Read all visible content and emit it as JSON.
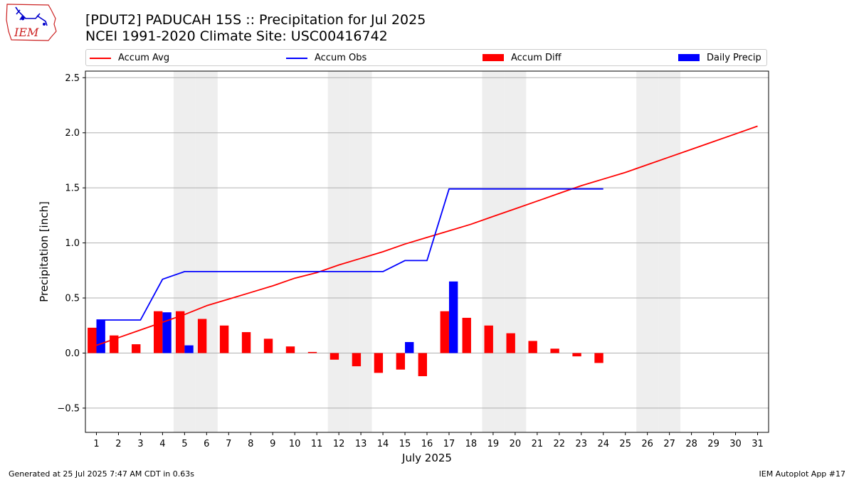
{
  "header": {
    "title_line1": "[PDUT2] PADUCAH 15S :: Precipitation for Jul 2025",
    "title_line2": "NCEI 1991-2020 Climate Site: USC00416742",
    "logo_text": "IEM"
  },
  "footer": {
    "generated": "Generated at 25 Jul 2025 7:47 AM CDT in 0.63s",
    "app": "IEM Autoplot App #17"
  },
  "legend": [
    {
      "label": "Accum Avg",
      "kind": "line",
      "color": "#ff0000"
    },
    {
      "label": "Accum Obs",
      "kind": "line",
      "color": "#0000ff"
    },
    {
      "label": "Accum Diff",
      "kind": "bar",
      "color": "#ff0000"
    },
    {
      "label": "Daily Precip",
      "kind": "bar",
      "color": "#0000ff"
    }
  ],
  "chart_data": {
    "type": "bar",
    "xlabel": "July 2025",
    "ylabel": "Precipitation [inch]",
    "ylim": [
      -0.72,
      2.56
    ],
    "yticks": [
      -0.5,
      0.0,
      0.5,
      1.0,
      1.5,
      2.0,
      2.5
    ],
    "ytick_labels": [
      "−0.5",
      "0.0",
      "0.5",
      "1.0",
      "1.5",
      "2.0",
      "2.5"
    ],
    "days": [
      1,
      2,
      3,
      4,
      5,
      6,
      7,
      8,
      9,
      10,
      11,
      12,
      13,
      14,
      15,
      16,
      17,
      18,
      19,
      20,
      21,
      22,
      23,
      24,
      25,
      26,
      27,
      28,
      29,
      30,
      31
    ],
    "weekend_days": [
      5,
      6,
      12,
      13,
      19,
      20,
      26,
      27
    ],
    "grid": "horizontal",
    "legend_position": "top",
    "series": [
      {
        "name": "Accum Avg",
        "kind": "line",
        "color": "#ff0000",
        "values": [
          0.07,
          0.14,
          0.21,
          0.28,
          0.35,
          0.43,
          0.49,
          0.55,
          0.61,
          0.68,
          0.73,
          0.8,
          0.86,
          0.92,
          0.99,
          1.05,
          1.11,
          1.17,
          1.24,
          1.31,
          1.38,
          1.45,
          1.52,
          1.58,
          1.64,
          1.71,
          1.78,
          1.85,
          1.92,
          1.99,
          2.06
        ]
      },
      {
        "name": "Accum Obs",
        "kind": "line",
        "color": "#0000ff",
        "values": [
          0.3,
          0.3,
          0.3,
          0.67,
          0.74,
          0.74,
          0.74,
          0.74,
          0.74,
          0.74,
          0.74,
          0.74,
          0.74,
          0.74,
          0.84,
          0.84,
          1.49,
          1.49,
          1.49,
          1.49,
          1.49,
          1.49,
          1.49,
          1.49
        ]
      },
      {
        "name": "Accum Diff",
        "kind": "bar",
        "color": "#ff0000",
        "values": [
          0.23,
          0.16,
          0.08,
          0.38,
          0.38,
          0.31,
          0.25,
          0.19,
          0.13,
          0.06,
          0.01,
          -0.06,
          -0.12,
          -0.18,
          -0.15,
          -0.21,
          0.38,
          0.32,
          0.25,
          0.18,
          0.11,
          0.04,
          -0.03,
          -0.09
        ]
      },
      {
        "name": "Daily Precip",
        "kind": "bar",
        "color": "#0000ff",
        "values": [
          0.3,
          0,
          0,
          0.37,
          0.07,
          0,
          0,
          0,
          0,
          0,
          0,
          0,
          0,
          0,
          0.1,
          0,
          0.65,
          0,
          0,
          0,
          0,
          0,
          0,
          0
        ]
      }
    ]
  }
}
